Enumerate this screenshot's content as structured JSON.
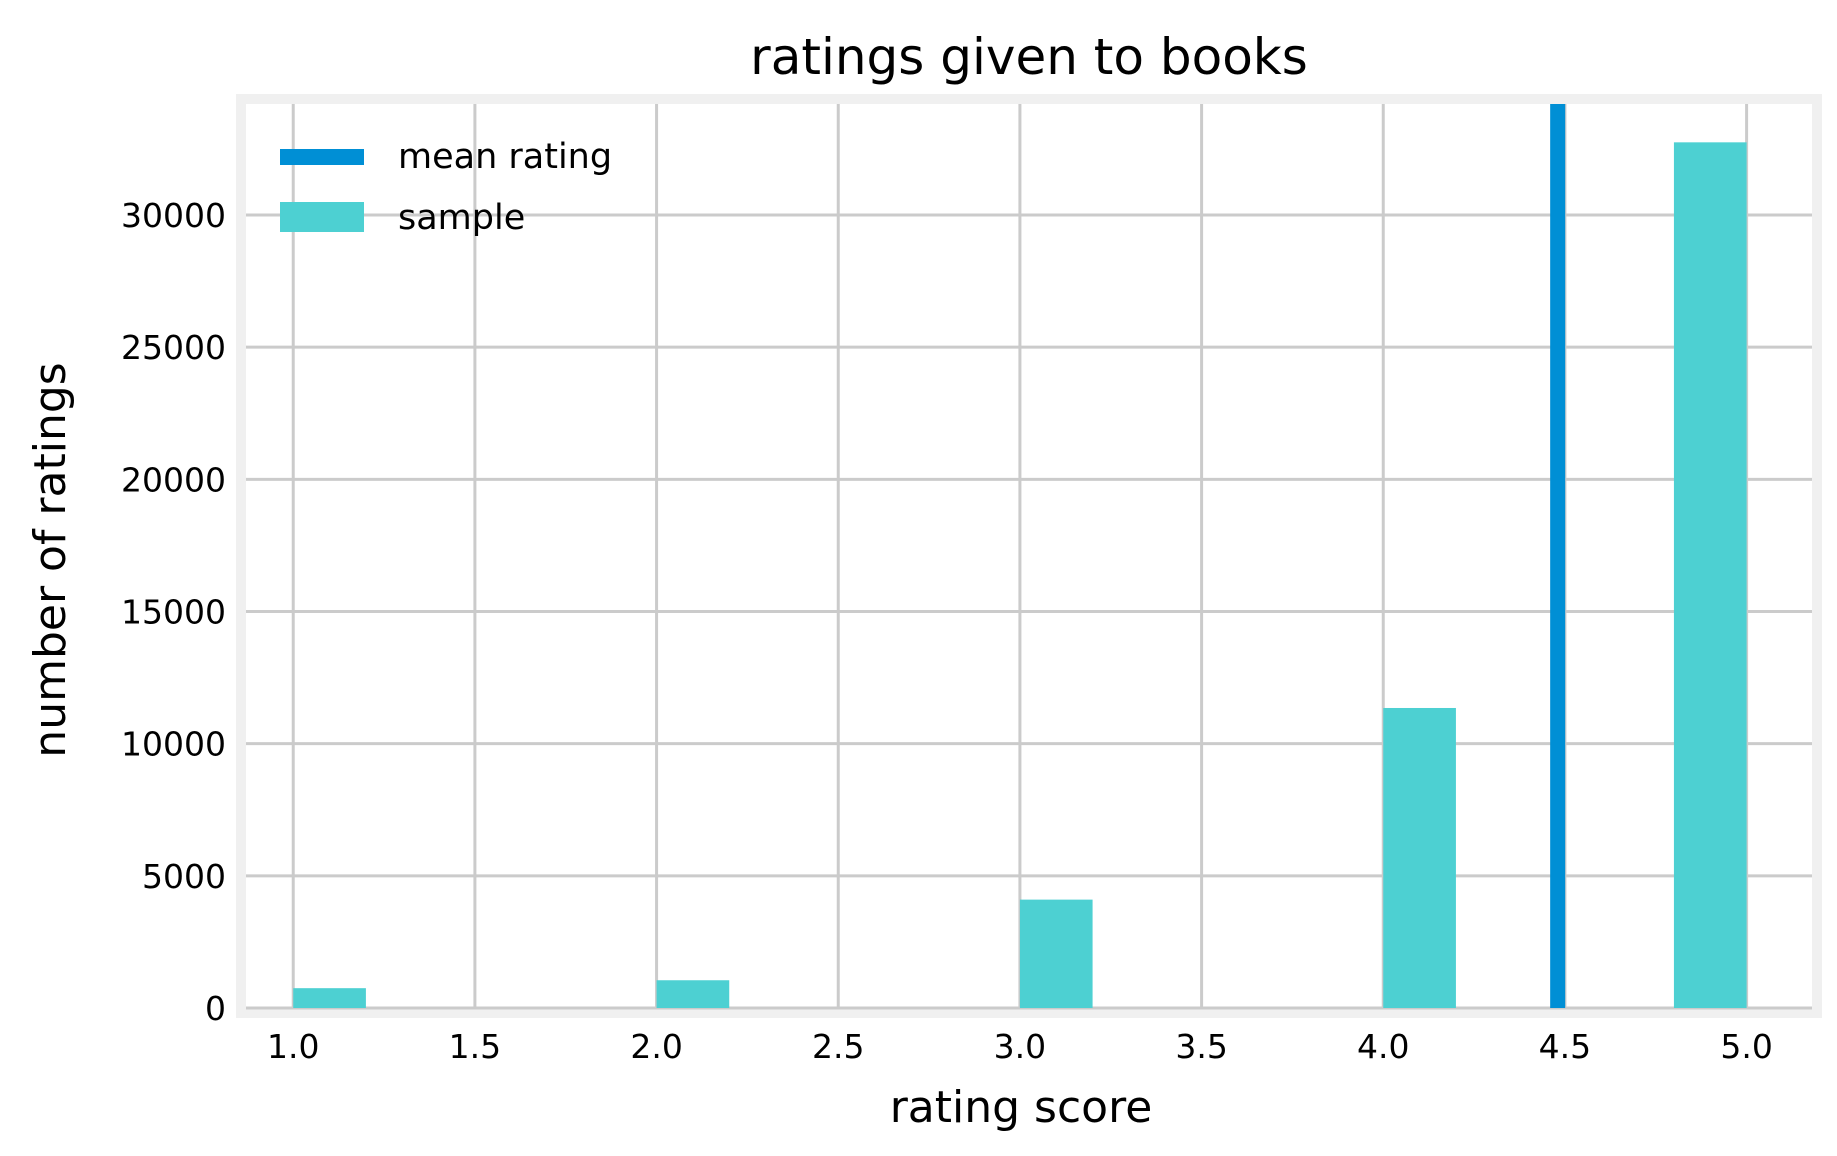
{
  "chart_data": {
    "type": "bar",
    "title": "ratings given to books",
    "xlabel": "rating score",
    "ylabel": "number of ratings",
    "xlim": [
      0.87,
      5.18
    ],
    "ylim": [
      0,
      34200
    ],
    "x_ticks": [
      1.0,
      1.5,
      2.0,
      2.5,
      3.0,
      3.5,
      4.0,
      4.5,
      5.0
    ],
    "x_tick_labels": [
      "1.0",
      "1.5",
      "2.0",
      "2.5",
      "3.0",
      "3.5",
      "4.0",
      "4.5",
      "5.0"
    ],
    "y_ticks": [
      0,
      5000,
      10000,
      15000,
      20000,
      25000,
      30000
    ],
    "y_tick_labels": [
      "0",
      "5000",
      "10000",
      "15000",
      "20000",
      "25000",
      "30000"
    ],
    "grid": true,
    "legend_position": "top-left",
    "series": [
      {
        "name": "sample",
        "kind": "histogram",
        "color": "#4dd0d2",
        "bins": [
          {
            "x0": 1.0,
            "x1": 1.2,
            "value": 750
          },
          {
            "x0": 2.0,
            "x1": 2.2,
            "value": 1050
          },
          {
            "x0": 3.0,
            "x1": 3.2,
            "value": 4100
          },
          {
            "x0": 4.0,
            "x1": 4.2,
            "value": 11350
          },
          {
            "x0": 4.8,
            "x1": 5.0,
            "value": 32750
          }
        ]
      },
      {
        "name": "mean rating",
        "kind": "vline",
        "color": "#008fd5",
        "x": 4.48
      }
    ],
    "background": "#ffffff",
    "frame_color": "#f0f0f0",
    "grid_color": "#cbcbcb"
  }
}
